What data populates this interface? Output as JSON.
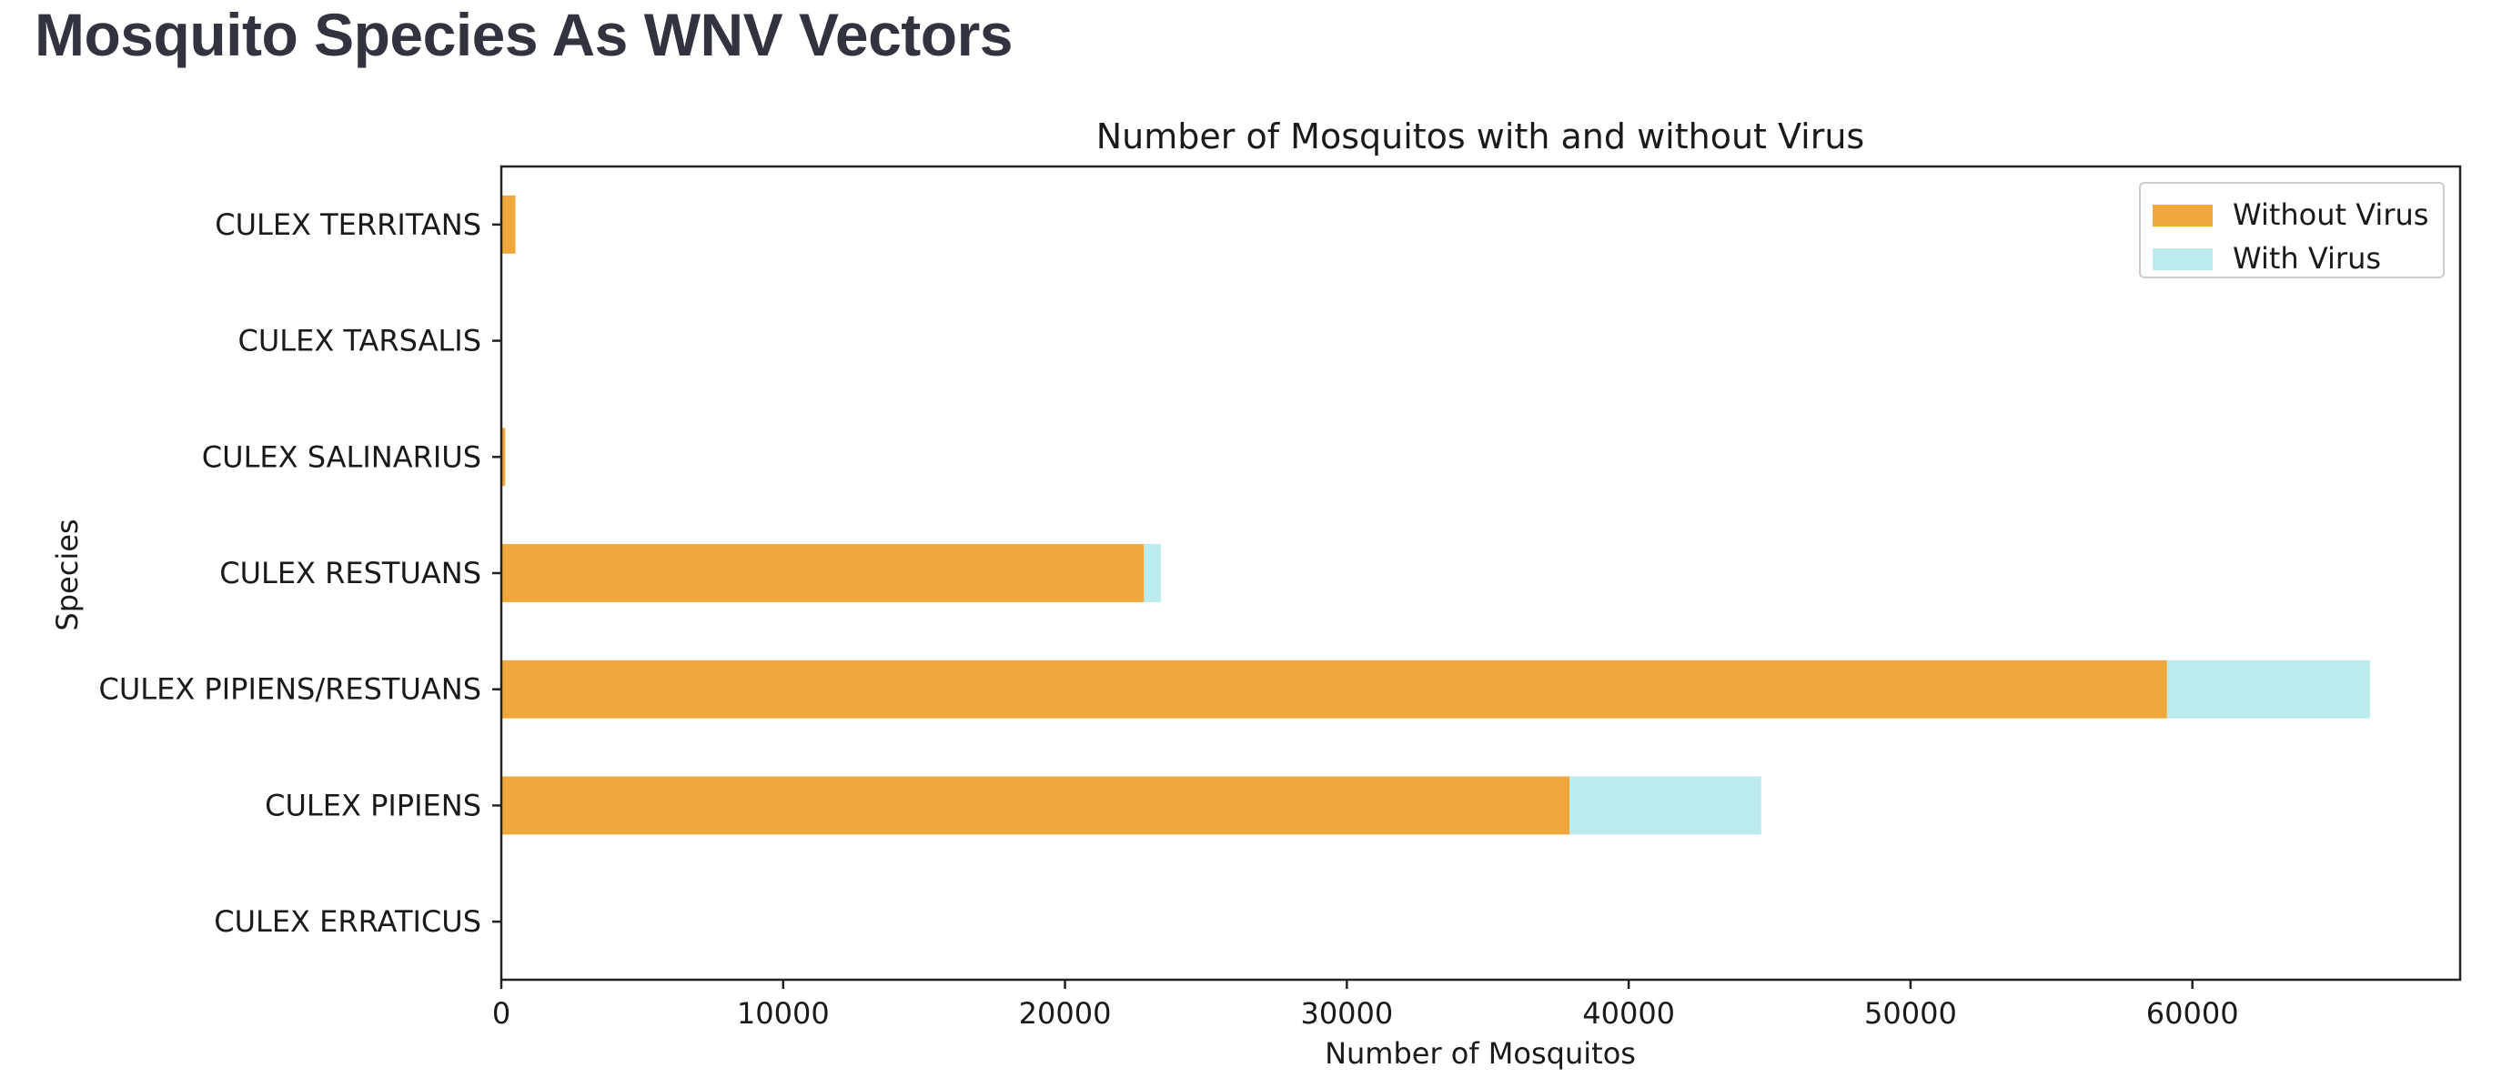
{
  "page": {
    "heading": "Mosquito Species As WNV Vectors"
  },
  "chart_data": {
    "type": "bar",
    "orientation": "horizontal",
    "stacked": true,
    "title": "Number of Mosquitos with and without Virus",
    "xlabel": "Number of Mosquitos",
    "ylabel": "Species",
    "categories": [
      "CULEX ERRATICUS",
      "CULEX PIPIENS",
      "CULEX PIPIENS/RESTUANS",
      "CULEX RESTUANS",
      "CULEX SALINARIUS",
      "CULEX TARSALIS",
      "CULEX TERRITANS"
    ],
    "series": [
      {
        "name": "Without Virus",
        "color": "#f0a83c",
        "values": [
          7,
          37900,
          59100,
          22800,
          140,
          6,
          500
        ]
      },
      {
        "name": "With Virus",
        "color": "#bbebec",
        "values": [
          0,
          6800,
          7200,
          600,
          0,
          0,
          0
        ]
      }
    ],
    "xlim": [
      0,
      69500
    ],
    "xticks": [
      0,
      10000,
      20000,
      30000,
      40000,
      50000,
      60000
    ],
    "grid": false,
    "legend": {
      "position": "top-right"
    }
  }
}
